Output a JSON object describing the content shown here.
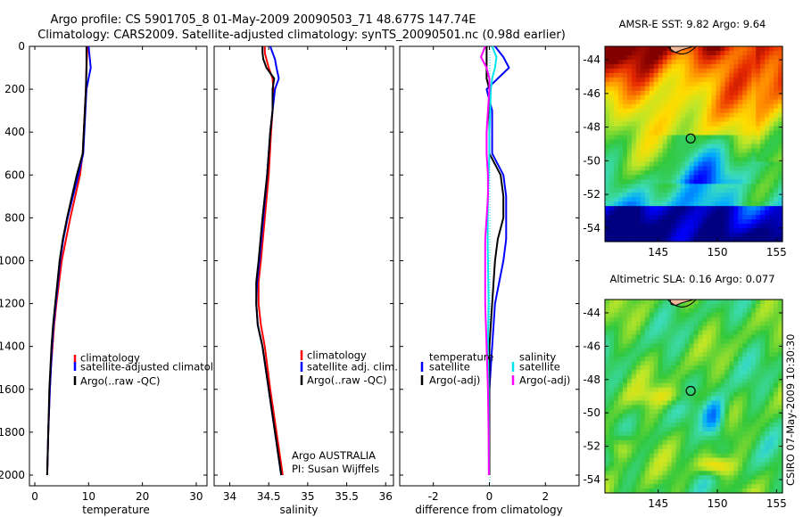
{
  "titles": {
    "line1": "Argo profile: CS 5901705_8 01-May-2009 20090503_71 48.677S 147.74E",
    "line2": "Climatology: CARS2009. Satellite-adjusted climatology: synTS_20090501.nc (0.98d earlier)"
  },
  "colors": {
    "climatology": "#ff0000",
    "satellite": "#0000ff",
    "argo": "#000000",
    "sat_salinity": "#00e5ee",
    "argo_adj_salinity": "#ff00ff"
  },
  "chart_data": [
    {
      "type": "line",
      "name": "temperature-panel",
      "xlabel": "temperature",
      "ylabel": "",
      "xlim": [
        -1,
        32
      ],
      "ylim": [
        2050,
        0
      ],
      "xticks": [
        0,
        10,
        20,
        30
      ],
      "yticks": [
        0,
        200,
        400,
        600,
        800,
        1000,
        1200,
        1400,
        1600,
        1800,
        2000
      ],
      "depth": [
        0,
        50,
        100,
        200,
        300,
        400,
        500,
        600,
        700,
        800,
        900,
        1000,
        1100,
        1200,
        1300,
        1400,
        1500,
        1600,
        1800,
        2000
      ],
      "series": [
        {
          "name": "climatology",
          "color": "#ff0000",
          "values": [
            9.8,
            9.7,
            9.6,
            9.5,
            9.3,
            9.1,
            8.9,
            8.4,
            7.5,
            6.6,
            5.8,
            5.0,
            4.5,
            4.0,
            3.6,
            3.3,
            3.0,
            2.8,
            2.5,
            2.3
          ]
        },
        {
          "name": "satellite-adjusted climatology",
          "color": "#0000ff",
          "values": [
            10.0,
            10.2,
            10.4,
            9.6,
            9.4,
            9.2,
            9.0,
            8.1,
            7.1,
            6.1,
            5.3,
            4.7,
            4.3,
            3.9,
            3.5,
            3.2,
            3.0,
            2.8,
            2.5,
            2.3
          ]
        },
        {
          "name": "Argo(..raw -QC)",
          "color": "#000000",
          "values": [
            9.6,
            9.6,
            9.6,
            9.5,
            9.3,
            9.1,
            8.9,
            7.8,
            6.9,
            6.0,
            5.2,
            4.6,
            4.2,
            3.8,
            3.4,
            3.1,
            2.9,
            2.7,
            2.5,
            2.3
          ]
        }
      ],
      "legend": [
        "climatology",
        "satellite-adjusted climatology",
        "Argo(..raw -QC)"
      ]
    },
    {
      "type": "line",
      "name": "salinity-panel",
      "xlabel": "salinity",
      "ylabel": "",
      "xlim": [
        33.8,
        36.1
      ],
      "ylim": [
        2050,
        0
      ],
      "xticks": [
        34,
        34.5,
        35,
        35.5,
        36
      ],
      "depth": [
        0,
        30,
        60,
        100,
        150,
        200,
        300,
        400,
        600,
        800,
        1000,
        1100,
        1200,
        1300,
        1400,
        1600,
        1800,
        2000
      ],
      "series": [
        {
          "name": "climatology",
          "color": "#ff0000",
          "values": [
            34.45,
            34.45,
            34.47,
            34.5,
            34.55,
            34.56,
            34.55,
            34.53,
            34.5,
            34.45,
            34.4,
            34.37,
            34.37,
            34.4,
            34.45,
            34.52,
            34.6,
            34.68
          ]
        },
        {
          "name": "satellite adj. clim.",
          "color": "#0000ff",
          "values": [
            34.52,
            34.55,
            34.58,
            34.6,
            34.63,
            34.58,
            34.55,
            34.52,
            34.48,
            34.43,
            34.38,
            34.35,
            34.34,
            34.36,
            34.42,
            34.5,
            34.58,
            34.66
          ]
        },
        {
          "name": "Argo(..raw -QC)",
          "color": "#000000",
          "values": [
            34.42,
            34.42,
            34.43,
            34.47,
            34.57,
            34.55,
            34.55,
            34.52,
            34.48,
            34.42,
            34.37,
            34.34,
            34.34,
            34.36,
            34.42,
            34.5,
            34.58,
            34.66
          ]
        }
      ],
      "legend": [
        "climatology",
        "satellite adj. clim.",
        "Argo(..raw -QC)"
      ],
      "annotation": [
        "Argo AUSTRALIA",
        "PI: Susan Wijffels"
      ]
    },
    {
      "type": "line",
      "name": "difference-panel",
      "xlabel": "difference from climatology",
      "ylabel": "",
      "xlim": [
        -3.2,
        3.2
      ],
      "ylim": [
        2050,
        0
      ],
      "xticks": [
        -2,
        0,
        2
      ],
      "depth": [
        0,
        50,
        100,
        150,
        200,
        300,
        400,
        500,
        600,
        700,
        800,
        900,
        1000,
        1200,
        1400,
        1600,
        1800,
        2000
      ],
      "series": [
        {
          "name": "temperature satellite",
          "color": "#0000ff",
          "values": [
            0.2,
            0.5,
            0.7,
            0.3,
            -0.1,
            0.1,
            0.1,
            0.1,
            0.5,
            0.6,
            0.6,
            0.6,
            0.5,
            0.2,
            0.1,
            0.0,
            0.0,
            0.0
          ]
        },
        {
          "name": "temperature Argo(-adj)",
          "color": "#000000",
          "values": [
            -0.1,
            -0.1,
            -0.1,
            -0.1,
            0.0,
            0.0,
            0.0,
            0.0,
            0.4,
            0.5,
            0.5,
            0.3,
            0.2,
            0.1,
            0.0,
            0.0,
            0.0,
            0.0
          ]
        },
        {
          "name": "salinity satellite",
          "color": "#00e5ee",
          "values": [
            0.1,
            0.25,
            0.2,
            0.1,
            0.05,
            0.03,
            0.0,
            0.0,
            -0.03,
            -0.05,
            -0.06,
            -0.06,
            -0.05,
            -0.03,
            -0.05,
            -0.03,
            -0.02,
            -0.02
          ]
        },
        {
          "name": "salinity Argo(-adj)",
          "color": "#ff00ff",
          "values": [
            -0.15,
            -0.3,
            -0.1,
            0.0,
            0.0,
            -0.05,
            -0.1,
            -0.1,
            -0.05,
            -0.05,
            -0.1,
            -0.15,
            -0.15,
            -0.15,
            -0.1,
            -0.05,
            -0.03,
            -0.02
          ]
        }
      ],
      "legend_left": {
        "header": "temperature",
        "items": [
          "satellite",
          "Argo(-adj)"
        ]
      },
      "legend_right": {
        "header": "salinity",
        "items": [
          "satellite",
          "Argo(-adj)"
        ]
      }
    },
    {
      "type": "heatmap",
      "name": "sst-map",
      "title": "AMSR-E SST: 9.82  Argo: 9.64",
      "xlim": [
        140.5,
        155.5
      ],
      "ylim": [
        -54.8,
        -43.2
      ],
      "xticks": [
        145,
        150,
        155
      ],
      "yticks": [
        -44,
        -46,
        -48,
        -50,
        -52,
        -54
      ],
      "marker": {
        "lon": 147.74,
        "lat": -48.677
      }
    },
    {
      "type": "heatmap",
      "name": "sla-map",
      "title": "Altimetric SLA: 0.16  Argo: 0.077",
      "xlim": [
        140.5,
        155.5
      ],
      "ylim": [
        -54.8,
        -43.2
      ],
      "xticks": [
        145,
        150,
        155
      ],
      "yticks": [
        -44,
        -46,
        -48,
        -50,
        -52,
        -54
      ],
      "marker": {
        "lon": 147.74,
        "lat": -48.677
      }
    }
  ],
  "footer": {
    "stamp": "CSIRO 07-May-2009 10:30:30"
  }
}
